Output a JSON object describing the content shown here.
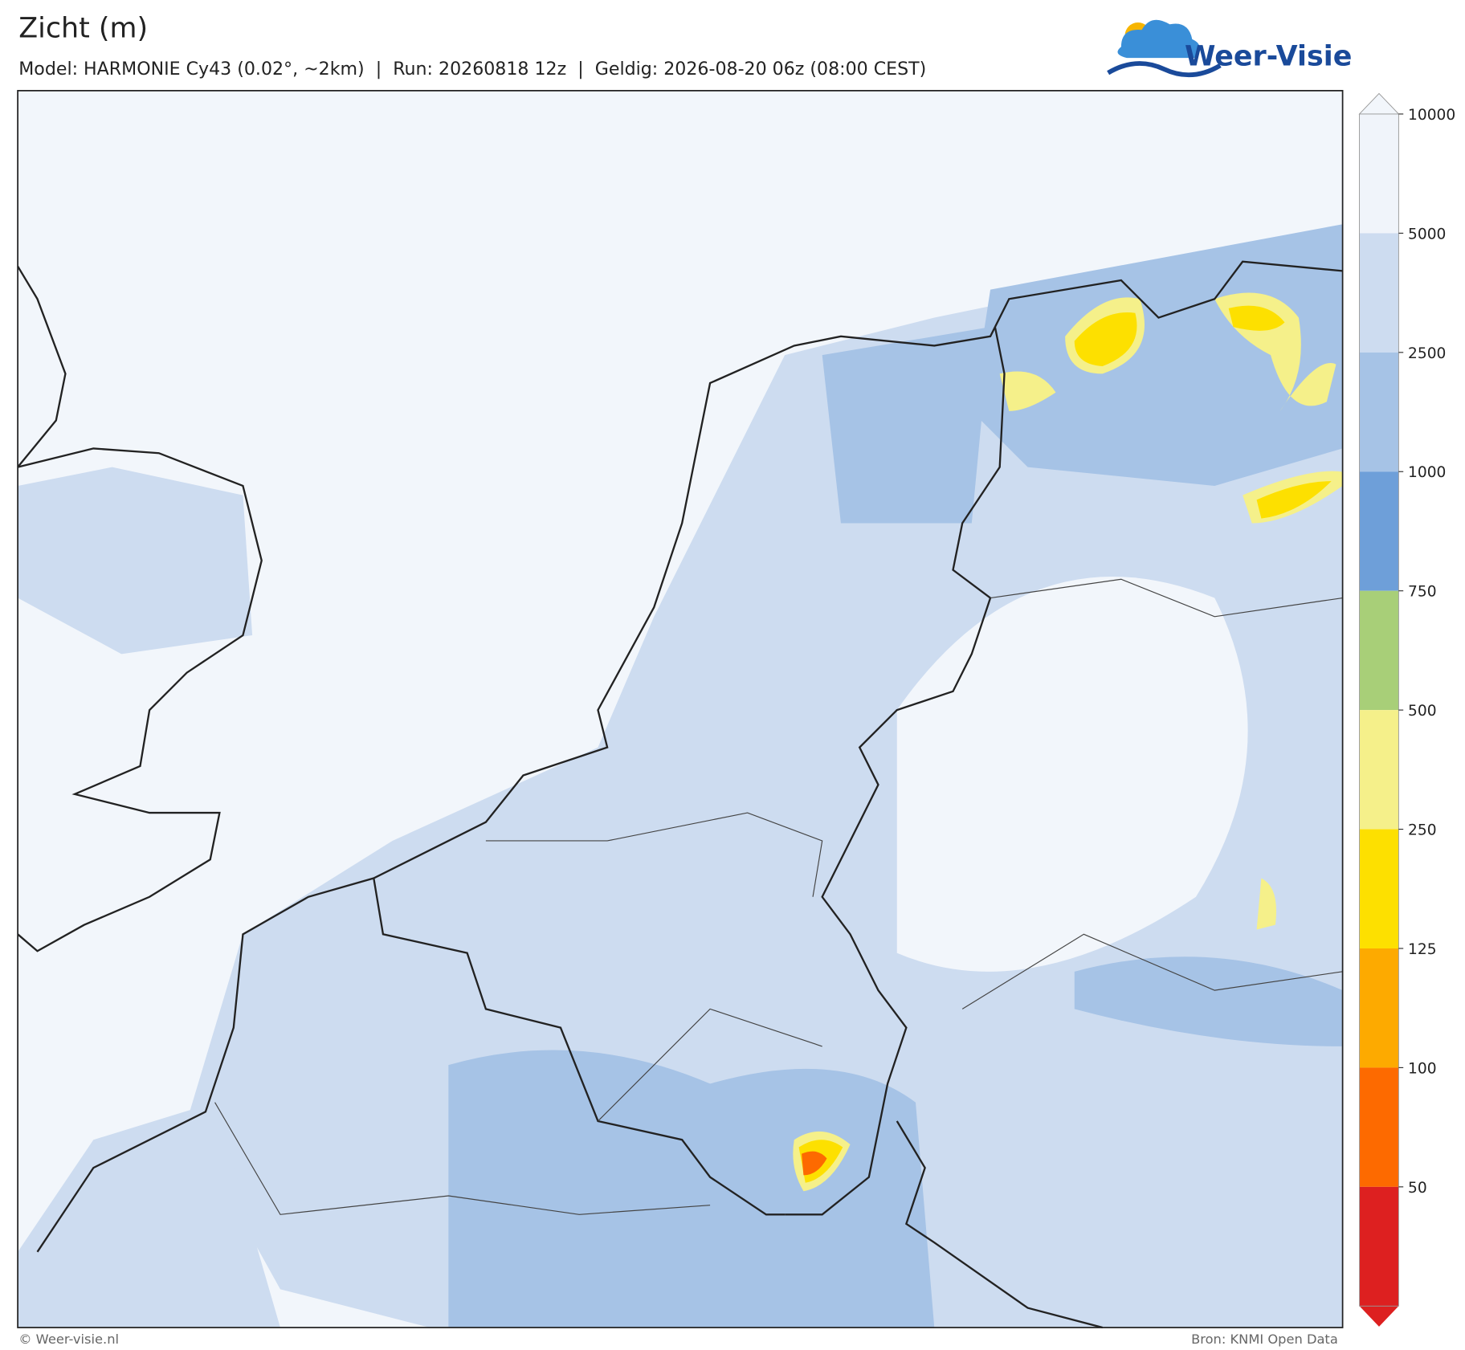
{
  "header": {
    "title": "Zicht (m)",
    "subtitle": "Model: HARMONIE Cy43 (0.02°, ~2km)  |  Run: 20260818 12z  |  Geldig: 2026-08-20 06z (08:00 CEST)",
    "logo": "Weer-Visie"
  },
  "colorbar": {
    "ticks": [
      10000,
      5000,
      2500,
      1000,
      750,
      500,
      250,
      125,
      100,
      50
    ],
    "colors": [
      "#f2f6fb",
      "#f0f4fa",
      "#cddcf0",
      "#a6c3e6",
      "#6e9fd9",
      "#a8cf78",
      "#f5f08a",
      "#fde000",
      "#fdaa00",
      "#fd6a00",
      "#dd2020"
    ]
  },
  "footer": {
    "left": "© Weer-visie.nl",
    "right": "Bron: KNMI Open Data"
  }
}
